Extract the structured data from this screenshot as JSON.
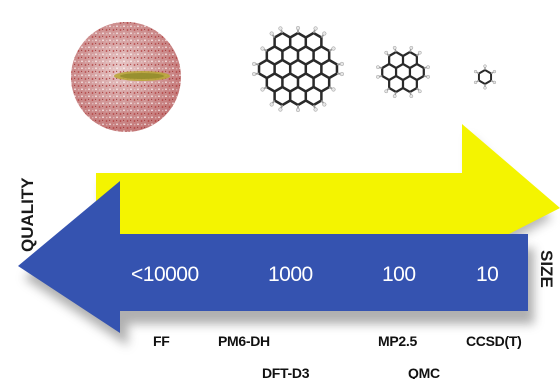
{
  "axes": {
    "quality_label": "QUALITY",
    "size_label": "SIZE"
  },
  "size_values": [
    "<10000",
    "1000",
    "100",
    "10"
  ],
  "methods": {
    "row1": [
      "FF",
      "PM6-DH",
      "MP2.5",
      "CCSD(T)"
    ],
    "row2": [
      "DFT-D3",
      "QMC"
    ]
  },
  "colors": {
    "quality_arrow": "#f4f400",
    "size_arrow": "#3553b0",
    "shadow": "#8a8a8a"
  },
  "icons": [
    "solvated-system-icon",
    "large-graphene-flake-icon",
    "coronene-molecule-icon",
    "benzene-molecule-icon"
  ]
}
